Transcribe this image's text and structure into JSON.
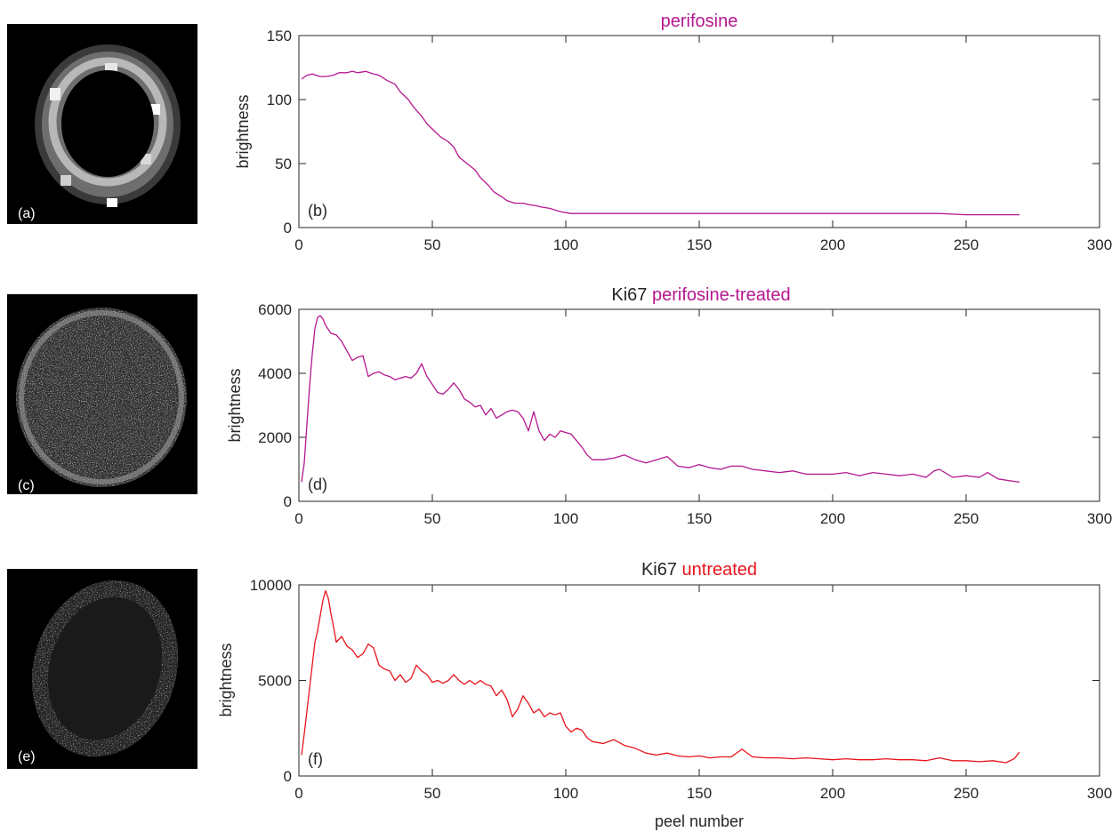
{
  "colors": {
    "magenta": "#b5178f",
    "red": "#e8141c",
    "axis": "#262626",
    "image_background": "#000000",
    "image_text": "#ffffff"
  },
  "images": [
    {
      "label": "(a)",
      "icon": "spheroid-ring-thumbnail"
    },
    {
      "label": "(c)",
      "icon": "spheroid-ki67-treated-thumbnail"
    },
    {
      "label": "(e)",
      "icon": "spheroid-ki67-untreated-thumbnail"
    }
  ],
  "chart_data": [
    {
      "type": "line",
      "title": "perifosine",
      "title_parts": [
        {
          "text": "perifosine",
          "color": "#b5178f"
        }
      ],
      "panel_label": "(b)",
      "xlabel": "",
      "ylabel": "brightness",
      "xlim": [
        0,
        300
      ],
      "ylim": [
        0,
        150
      ],
      "xticks": [
        0,
        50,
        100,
        150,
        200,
        250,
        300
      ],
      "yticks": [
        0,
        50,
        100,
        150
      ],
      "xtick_labels": [
        "0",
        "50",
        "100",
        "150",
        "200",
        "250",
        "300"
      ],
      "ytick_labels": [
        "0",
        "50",
        "100",
        "150"
      ],
      "grid": false,
      "series": [
        {
          "color": "#b5178f",
          "x": [
            1,
            3,
            5,
            8,
            10,
            13,
            15,
            18,
            20,
            22,
            25,
            28,
            30,
            33,
            36,
            38,
            41,
            43,
            46,
            48,
            51,
            53,
            56,
            58,
            60,
            63,
            66,
            68,
            71,
            73,
            76,
            78,
            81,
            84,
            86,
            89,
            91,
            94,
            97,
            99,
            102,
            105,
            110,
            115,
            120,
            125,
            130,
            140,
            150,
            160,
            170,
            180,
            190,
            200,
            210,
            220,
            230,
            240,
            250,
            260,
            270
          ],
          "y": [
            116,
            119,
            120,
            118,
            118,
            119,
            121,
            121,
            122,
            121,
            122,
            120,
            119,
            115,
            112,
            106,
            100,
            94,
            87,
            81,
            75,
            71,
            67,
            63,
            55,
            50,
            45,
            39,
            33,
            28,
            24,
            21,
            19,
            19,
            18,
            17,
            16,
            15,
            13,
            12,
            11,
            11,
            11,
            11,
            11,
            11,
            11,
            11,
            11,
            11,
            11,
            11,
            11,
            11,
            11,
            11,
            11,
            11,
            10,
            10,
            10
          ]
        }
      ]
    },
    {
      "type": "line",
      "title": "Ki67 perifosine-treated",
      "title_parts": [
        {
          "text": "Ki67 ",
          "color": "#262626"
        },
        {
          "text": "perifosine-treated",
          "color": "#b5178f"
        }
      ],
      "panel_label": "(d)",
      "xlabel": "",
      "ylabel": "brightness",
      "xlim": [
        0,
        300
      ],
      "ylim": [
        0,
        6000
      ],
      "xticks": [
        0,
        50,
        100,
        150,
        200,
        250,
        300
      ],
      "yticks": [
        0,
        2000,
        4000,
        6000
      ],
      "xtick_labels": [
        "0",
        "50",
        "100",
        "150",
        "200",
        "250",
        "300"
      ],
      "ytick_labels": [
        "0",
        "2000",
        "4000",
        "6000"
      ],
      "grid": false,
      "series": [
        {
          "color": "#b5178f",
          "x": [
            1,
            2,
            3,
            4,
            5,
            6,
            7,
            8,
            9,
            10,
            12,
            14,
            16,
            18,
            20,
            22,
            24,
            26,
            28,
            30,
            32,
            34,
            36,
            38,
            40,
            42,
            44,
            46,
            48,
            50,
            52,
            54,
            56,
            58,
            60,
            62,
            64,
            66,
            68,
            70,
            72,
            74,
            76,
            78,
            80,
            82,
            84,
            86,
            88,
            90,
            92,
            94,
            96,
            98,
            100,
            102,
            104,
            106,
            108,
            110,
            114,
            118,
            122,
            126,
            130,
            134,
            138,
            142,
            146,
            150,
            154,
            158,
            162,
            166,
            170,
            175,
            180,
            185,
            190,
            195,
            200,
            205,
            210,
            215,
            220,
            225,
            230,
            235,
            238,
            240,
            245,
            250,
            255,
            258,
            262,
            266,
            270
          ],
          "y": [
            600,
            1200,
            2400,
            3600,
            4600,
            5400,
            5750,
            5800,
            5700,
            5500,
            5250,
            5200,
            5000,
            4700,
            4400,
            4500,
            4550,
            3900,
            4000,
            4050,
            3950,
            3900,
            3800,
            3850,
            3900,
            3850,
            4000,
            4300,
            3900,
            3650,
            3400,
            3350,
            3500,
            3700,
            3500,
            3200,
            3100,
            2950,
            3000,
            2700,
            2900,
            2600,
            2700,
            2800,
            2850,
            2800,
            2600,
            2200,
            2800,
            2200,
            1900,
            2100,
            2000,
            2200,
            2150,
            2100,
            1900,
            1700,
            1450,
            1300,
            1300,
            1350,
            1450,
            1300,
            1200,
            1300,
            1400,
            1100,
            1050,
            1150,
            1050,
            1000,
            1100,
            1100,
            1000,
            950,
            900,
            950,
            850,
            850,
            850,
            900,
            800,
            900,
            850,
            800,
            850,
            750,
            950,
            1000,
            750,
            800,
            750,
            900,
            700,
            650,
            600
          ]
        }
      ]
    },
    {
      "type": "line",
      "title": "Ki67 untreated",
      "title_parts": [
        {
          "text": "Ki67 ",
          "color": "#262626"
        },
        {
          "text": "untreated",
          "color": "#e8141c"
        }
      ],
      "panel_label": "(f)",
      "xlabel": "peel number",
      "ylabel": "brightness",
      "xlim": [
        0,
        300
      ],
      "ylim": [
        0,
        10000
      ],
      "xticks": [
        0,
        50,
        100,
        150,
        200,
        250,
        300
      ],
      "yticks": [
        0,
        5000,
        10000
      ],
      "xtick_labels": [
        "0",
        "50",
        "100",
        "150",
        "200",
        "250",
        "300"
      ],
      "ytick_labels": [
        "0",
        "5000",
        "10000"
      ],
      "grid": false,
      "series": [
        {
          "color": "#e8141c",
          "x": [
            1,
            2,
            3,
            4,
            5,
            6,
            7,
            8,
            9,
            10,
            11,
            12,
            13,
            14,
            16,
            18,
            20,
            22,
            24,
            26,
            28,
            30,
            32,
            34,
            36,
            38,
            40,
            42,
            44,
            46,
            48,
            50,
            52,
            54,
            56,
            58,
            60,
            62,
            64,
            66,
            68,
            70,
            72,
            74,
            76,
            78,
            80,
            82,
            84,
            86,
            88,
            90,
            92,
            94,
            96,
            98,
            100,
            102,
            104,
            106,
            108,
            110,
            114,
            118,
            122,
            126,
            130,
            134,
            138,
            142,
            146,
            150,
            154,
            158,
            162,
            166,
            170,
            175,
            180,
            185,
            190,
            195,
            200,
            205,
            210,
            215,
            220,
            225,
            230,
            235,
            240,
            245,
            250,
            255,
            260,
            265,
            268,
            270
          ],
          "y": [
            1100,
            2200,
            3400,
            4600,
            5800,
            7000,
            7600,
            8400,
            9200,
            9700,
            9300,
            8500,
            7800,
            7000,
            7300,
            6800,
            6600,
            6200,
            6400,
            6900,
            6700,
            5800,
            5600,
            5500,
            5000,
            5300,
            4900,
            5100,
            5800,
            5500,
            5300,
            4900,
            5000,
            4850,
            5000,
            5300,
            5000,
            4800,
            5000,
            4800,
            5000,
            4800,
            4700,
            4200,
            4500,
            4000,
            3100,
            3500,
            4200,
            3800,
            3300,
            3500,
            3100,
            3300,
            3200,
            3300,
            2600,
            2300,
            2500,
            2400,
            2000,
            1800,
            1700,
            1900,
            1600,
            1450,
            1200,
            1100,
            1200,
            1050,
            1000,
            1050,
            950,
            1000,
            1000,
            1400,
            1000,
            950,
            950,
            900,
            950,
            900,
            850,
            900,
            850,
            850,
            900,
            850,
            850,
            800,
            950,
            800,
            800,
            750,
            800,
            700,
            900,
            1250
          ]
        }
      ]
    }
  ]
}
